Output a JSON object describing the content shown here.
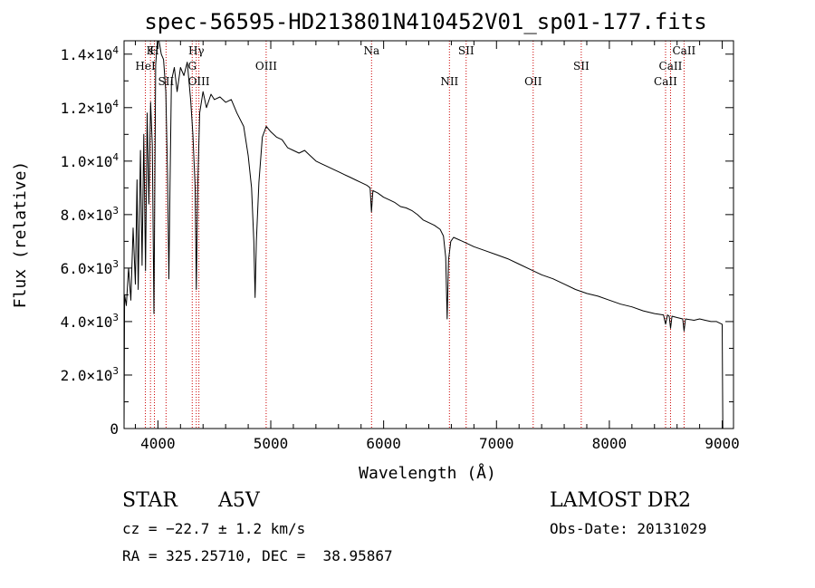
{
  "chart_data": {
    "type": "line",
    "title": "spec-56595-HD213801N410452V01_sp01-177.fits",
    "xlabel": "Wavelength (Å)",
    "ylabel": "Flux (relative)",
    "xlim": [
      3700,
      9100
    ],
    "ylim": [
      0,
      14500
    ],
    "xticks": [
      {
        "value": 4000,
        "label": "4000"
      },
      {
        "value": 5000,
        "label": "5000"
      },
      {
        "value": 6000,
        "label": "6000"
      },
      {
        "value": 7000,
        "label": "7000"
      },
      {
        "value": 8000,
        "label": "8000"
      },
      {
        "value": 9000,
        "label": "9000"
      }
    ],
    "yticks": [
      {
        "value": 0,
        "mant": "0",
        "exp": ""
      },
      {
        "value": 2000,
        "mant": "2.0×10",
        "exp": "3"
      },
      {
        "value": 4000,
        "mant": "4.0×10",
        "exp": "3"
      },
      {
        "value": 6000,
        "mant": "6.0×10",
        "exp": "3"
      },
      {
        "value": 8000,
        "mant": "8.0×10",
        "exp": "3"
      },
      {
        "value": 10000,
        "mant": "1.0×10",
        "exp": "4"
      },
      {
        "value": 12000,
        "mant": "1.2×10",
        "exp": "4"
      },
      {
        "value": 14000,
        "mant": "1.4×10",
        "exp": "4"
      }
    ],
    "grid": false,
    "series": [
      {
        "color": "#000000",
        "points": [
          [
            3700,
            0
          ],
          [
            3705,
            5000
          ],
          [
            3720,
            4600
          ],
          [
            3740,
            6000
          ],
          [
            3760,
            4800
          ],
          [
            3780,
            7500
          ],
          [
            3800,
            5400
          ],
          [
            3815,
            9300
          ],
          [
            3825,
            5200
          ],
          [
            3845,
            10400
          ],
          [
            3860,
            6100
          ],
          [
            3875,
            11000
          ],
          [
            3890,
            5900
          ],
          [
            3905,
            11800
          ],
          [
            3920,
            8400
          ],
          [
            3935,
            12200
          ],
          [
            3950,
            10600
          ],
          [
            3965,
            4300
          ],
          [
            3980,
            13600
          ],
          [
            3995,
            14500
          ],
          [
            4010,
            14500
          ],
          [
            4030,
            14000
          ],
          [
            4050,
            13800
          ],
          [
            4070,
            12600
          ],
          [
            4085,
            9500
          ],
          [
            4097,
            5600
          ],
          [
            4108,
            9200
          ],
          [
            4120,
            13000
          ],
          [
            4145,
            13500
          ],
          [
            4170,
            12600
          ],
          [
            4200,
            13500
          ],
          [
            4230,
            13200
          ],
          [
            4260,
            13700
          ],
          [
            4290,
            12300
          ],
          [
            4310,
            11000
          ],
          [
            4330,
            9000
          ],
          [
            4340,
            5200
          ],
          [
            4352,
            9000
          ],
          [
            4370,
            11800
          ],
          [
            4400,
            12600
          ],
          [
            4430,
            12000
          ],
          [
            4470,
            12500
          ],
          [
            4500,
            12300
          ],
          [
            4550,
            12400
          ],
          [
            4600,
            12200
          ],
          [
            4650,
            12300
          ],
          [
            4700,
            11800
          ],
          [
            4760,
            11300
          ],
          [
            4800,
            10200
          ],
          [
            4830,
            9000
          ],
          [
            4850,
            7000
          ],
          [
            4861,
            4900
          ],
          [
            4872,
            7000
          ],
          [
            4895,
            9200
          ],
          [
            4925,
            10900
          ],
          [
            4960,
            11300
          ],
          [
            5000,
            11100
          ],
          [
            5050,
            10900
          ],
          [
            5100,
            10800
          ],
          [
            5150,
            10500
          ],
          [
            5200,
            10400
          ],
          [
            5250,
            10300
          ],
          [
            5300,
            10400
          ],
          [
            5350,
            10200
          ],
          [
            5400,
            10000
          ],
          [
            5450,
            9900
          ],
          [
            5500,
            9800
          ],
          [
            5550,
            9700
          ],
          [
            5600,
            9600
          ],
          [
            5650,
            9500
          ],
          [
            5700,
            9400
          ],
          [
            5750,
            9300
          ],
          [
            5800,
            9200
          ],
          [
            5850,
            9100
          ],
          [
            5880,
            9000
          ],
          [
            5892,
            8100
          ],
          [
            5905,
            8900
          ],
          [
            5950,
            8800
          ],
          [
            6000,
            8650
          ],
          [
            6050,
            8550
          ],
          [
            6100,
            8450
          ],
          [
            6150,
            8300
          ],
          [
            6200,
            8250
          ],
          [
            6250,
            8150
          ],
          [
            6300,
            8000
          ],
          [
            6350,
            7800
          ],
          [
            6400,
            7700
          ],
          [
            6450,
            7600
          ],
          [
            6500,
            7450
          ],
          [
            6530,
            7200
          ],
          [
            6550,
            6400
          ],
          [
            6563,
            4100
          ],
          [
            6575,
            6300
          ],
          [
            6595,
            7000
          ],
          [
            6620,
            7150
          ],
          [
            6700,
            7000
          ],
          [
            6800,
            6800
          ],
          [
            6900,
            6650
          ],
          [
            7000,
            6500
          ],
          [
            7100,
            6350
          ],
          [
            7200,
            6150
          ],
          [
            7300,
            5950
          ],
          [
            7400,
            5750
          ],
          [
            7500,
            5600
          ],
          [
            7600,
            5400
          ],
          [
            7700,
            5200
          ],
          [
            7800,
            5050
          ],
          [
            7900,
            4950
          ],
          [
            8000,
            4800
          ],
          [
            8100,
            4650
          ],
          [
            8200,
            4550
          ],
          [
            8300,
            4400
          ],
          [
            8400,
            4300
          ],
          [
            8480,
            4250
          ],
          [
            8498,
            3900
          ],
          [
            8515,
            4250
          ],
          [
            8530,
            4200
          ],
          [
            8542,
            3750
          ],
          [
            8555,
            4200
          ],
          [
            8600,
            4150
          ],
          [
            8650,
            4100
          ],
          [
            8662,
            3650
          ],
          [
            8675,
            4100
          ],
          [
            8750,
            4050
          ],
          [
            8800,
            4100
          ],
          [
            8850,
            4050
          ],
          [
            8900,
            4000
          ],
          [
            8950,
            4000
          ],
          [
            9000,
            3900
          ],
          [
            9005,
            0
          ]
        ]
      }
    ],
    "lines": [
      {
        "wavelength": 3889,
        "label": "HeI",
        "row": 1
      },
      {
        "wavelength": 3934,
        "label": "K",
        "row": 0
      },
      {
        "wavelength": 3969,
        "label": "H",
        "row": 0
      },
      {
        "wavelength": 4072,
        "label": "SII",
        "row": 2
      },
      {
        "wavelength": 4304,
        "label": "G",
        "row": 1
      },
      {
        "wavelength": 4340,
        "label": "Hγ",
        "row": 0
      },
      {
        "wavelength": 4363,
        "label": "OIII",
        "row": 2
      },
      {
        "wavelength": 4959,
        "label": "OIII",
        "row": 1
      },
      {
        "wavelength": 5893,
        "label": "Na",
        "row": 0
      },
      {
        "wavelength": 6583,
        "label": "NII",
        "row": 2
      },
      {
        "wavelength": 6731,
        "label": "SII",
        "row": 0
      },
      {
        "wavelength": 7325,
        "label": "OII",
        "row": 2
      },
      {
        "wavelength": 7751,
        "label": "SII",
        "row": 1
      },
      {
        "wavelength": 8498,
        "label": "CaII",
        "row": 2
      },
      {
        "wavelength": 8542,
        "label": "CaII",
        "row": 1
      },
      {
        "wavelength": 8662,
        "label": "CaII",
        "row": 0
      }
    ]
  },
  "info": {
    "object_type": "STAR",
    "spectral_class": "A5V",
    "survey": "LAMOST DR2",
    "redshift": "cz = −22.7 ± 1.2 km/s",
    "obs_date": "Obs-Date: 20131029",
    "coords": "RA = 325.25710, DEC =  38.95867"
  },
  "colors": {
    "spectrum": "#000000",
    "line_marker": "#cc0000",
    "axes": "#000000"
  }
}
